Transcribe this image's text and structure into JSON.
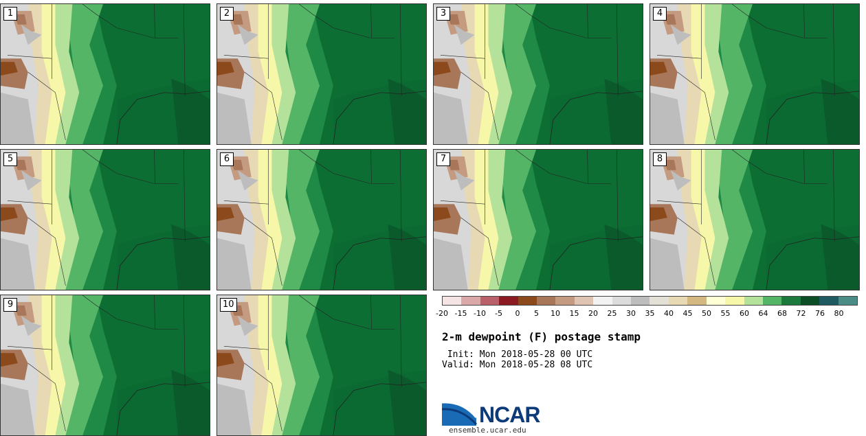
{
  "panels": [
    {
      "label": "1"
    },
    {
      "label": "2"
    },
    {
      "label": "3"
    },
    {
      "label": "4"
    },
    {
      "label": "5"
    },
    {
      "label": "6"
    },
    {
      "label": "7"
    },
    {
      "label": "8"
    },
    {
      "label": "9"
    },
    {
      "label": "10"
    }
  ],
  "colorbar": {
    "ticks": [
      "-20",
      "-15",
      "-10",
      "-5",
      "0",
      "5",
      "10",
      "15",
      "20",
      "25",
      "30",
      "35",
      "40",
      "45",
      "50",
      "55",
      "60",
      "64",
      "68",
      "72",
      "76",
      "80"
    ],
    "colors": [
      "#f5e4e4",
      "#dba8aa",
      "#b9606a",
      "#8c1a22",
      "#8c4a1c",
      "#a87658",
      "#c49a80",
      "#dfc4b3",
      "#f2f2f2",
      "#dcdcdc",
      "#bdbdbd",
      "#e3e1d6",
      "#e6d9b3",
      "#d3b882",
      "#ffffd6",
      "#f6f7a8",
      "#b4e29a",
      "#54b567",
      "#1b7a3c",
      "#0c4d26",
      "#1f5a60",
      "#4b8c86"
    ]
  },
  "title": "2-m dewpoint (F) postage stamp",
  "init": " Init: Mon 2018-05-28 00 UTC",
  "valid": "Valid: Mon 2018-05-28 08 UTC",
  "logo": {
    "name": "NCAR",
    "url": "ensemble.ucar.edu"
  }
}
